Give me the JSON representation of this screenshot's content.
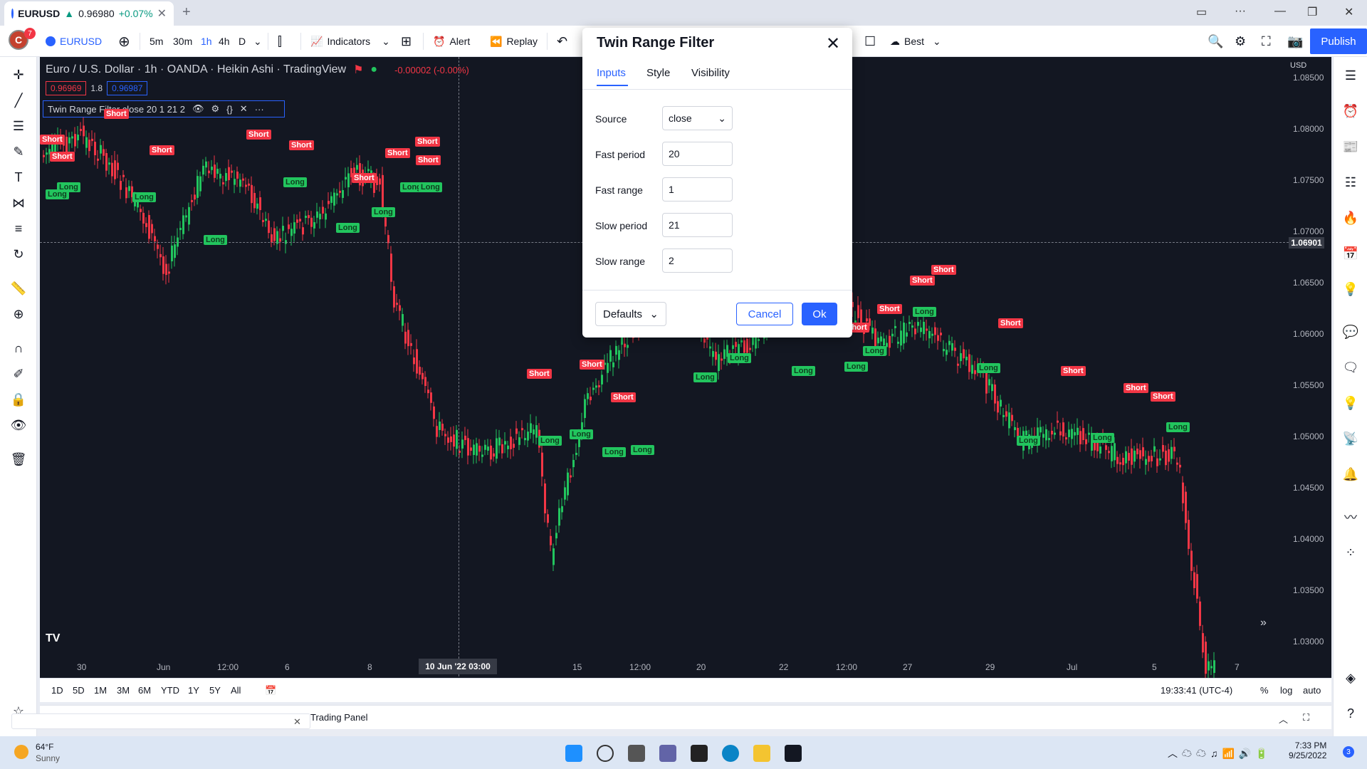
{
  "browser": {
    "tab_symbol": "EURUSD",
    "tab_price": "0.96980",
    "tab_change": "+0.07%",
    "tab_close": "✕",
    "new_tab": "+"
  },
  "toolbar": {
    "avatar_letter": "C",
    "avatar_badge": "7",
    "symbol": "EURUSD",
    "intervals": [
      "5m",
      "30m",
      "1h",
      "4h",
      "D"
    ],
    "active_interval": "1h",
    "indicators": "Indicators",
    "alert": "Alert",
    "replay": "Replay",
    "best": "Best",
    "publish": "Publish"
  },
  "legend": {
    "title": "Euro / U.S. Dollar · 1h · OANDA · Heikin Ashi · TradingView",
    "change": "-0.00002 (-0.00%)",
    "bid": "0.96969",
    "spread": "1.8",
    "ask": "0.96987",
    "indicator": "Twin Range Filter close 20 1 21 2"
  },
  "chart": {
    "currency": "USD",
    "y_ticks": [
      "1.08500",
      "1.08000",
      "1.07500",
      "1.07000",
      "1.06500",
      "1.06000",
      "1.05500",
      "1.05000",
      "1.04500",
      "1.04000",
      "1.03500",
      "1.03000"
    ],
    "crosshair_price": "1.06901",
    "x_ticks": [
      "30",
      "Jun",
      "12:00",
      "6",
      "8",
      "15",
      "12:00",
      "20",
      "22",
      "12:00",
      "27",
      "29",
      "Jul",
      "5",
      "7"
    ],
    "crosshair_time": "10 Jun '22   03:00",
    "signals_short": "Short",
    "signals_long": "Long",
    "colors": {
      "up": "#22c55e",
      "down": "#f23645",
      "bg": "#131722"
    }
  },
  "bottom": {
    "ranges": [
      "1D",
      "5D",
      "1M",
      "3M",
      "6M",
      "YTD",
      "1Y",
      "5Y",
      "All"
    ],
    "time": "19:33:41 (UTC-4)",
    "pct": "%",
    "log": "log",
    "auto": "auto",
    "trading_panel": "Trading Panel"
  },
  "dialog": {
    "title": "Twin Range Filter",
    "tabs": [
      "Inputs",
      "Style",
      "Visibility"
    ],
    "fields": [
      {
        "label": "Source",
        "value": "close"
      },
      {
        "label": "Fast period",
        "value": "20"
      },
      {
        "label": "Fast range",
        "value": "1"
      },
      {
        "label": "Slow period",
        "value": "21"
      },
      {
        "label": "Slow range",
        "value": "2"
      }
    ],
    "defaults": "Defaults",
    "cancel": "Cancel",
    "ok": "Ok"
  },
  "taskbar": {
    "temp": "64°F",
    "weather": "Sunny",
    "time": "7:33 PM",
    "date": "9/25/2022",
    "notif": "3"
  }
}
